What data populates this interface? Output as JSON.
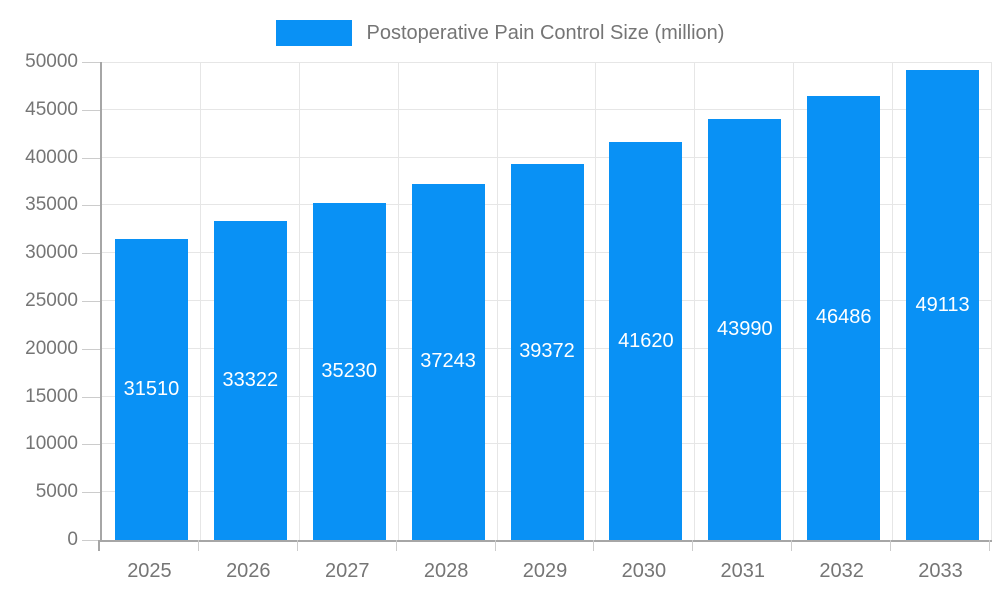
{
  "legend": {
    "items": [
      {
        "label": "Postoperative Pain Control Size (million)",
        "color": "#0991f5"
      }
    ],
    "position": "top-center"
  },
  "colors": {
    "bar": "#0991f5",
    "grid": "#e6e6e6",
    "axis": "#a6a6a6",
    "tick": "#cccccc",
    "text": "#757575",
    "value_text": "#ffffff",
    "background": "#ffffff"
  },
  "chart_data": {
    "type": "bar",
    "title": "Postoperative Pain Control Size (million)",
    "series_name": "Postoperative Pain Control Size (million)",
    "categories": [
      "2025",
      "2026",
      "2027",
      "2028",
      "2029",
      "2030",
      "2031",
      "2032",
      "2033"
    ],
    "values": [
      31510,
      33322,
      35230,
      37243,
      39372,
      41620,
      43990,
      46486,
      49113
    ],
    "xlabel": "",
    "ylabel": "",
    "ylim": [
      0,
      50000
    ],
    "ytick_step": 5000,
    "yticks": [
      0,
      5000,
      10000,
      15000,
      20000,
      25000,
      30000,
      35000,
      40000,
      45000,
      50000
    ],
    "grid": true,
    "legend_position": "top",
    "value_labels": "inside-center"
  }
}
